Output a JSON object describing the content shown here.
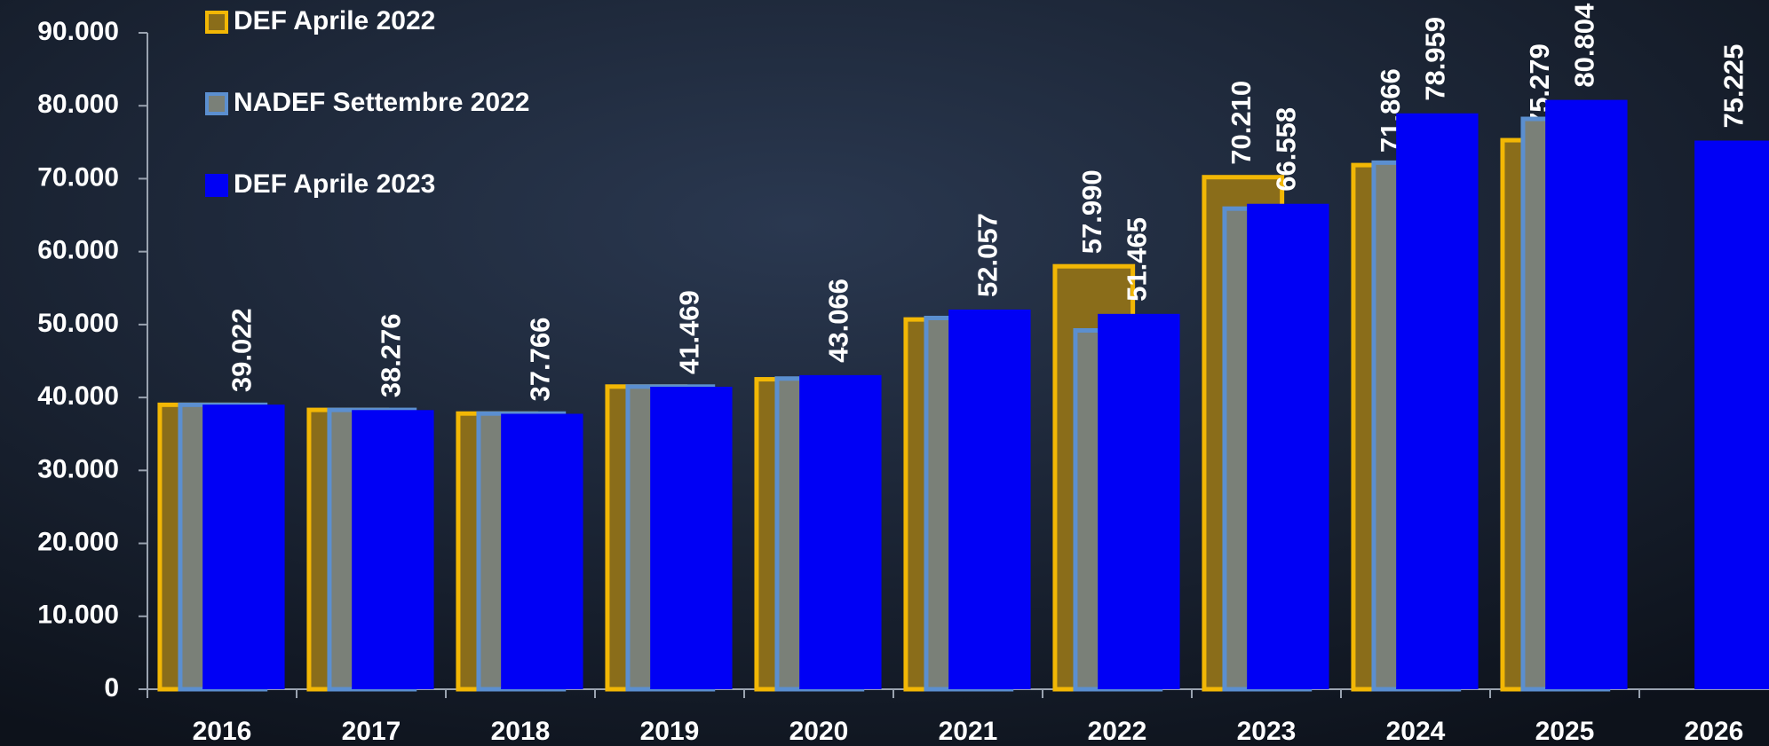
{
  "chart_data": {
    "type": "bar",
    "categories": [
      "2016",
      "2017",
      "2018",
      "2019",
      "2020",
      "2021",
      "2022",
      "2023",
      "2024",
      "2025",
      "2026"
    ],
    "series": [
      {
        "name": "DEF Aprile 2022",
        "color": "#8a6d1a",
        "edgecolor": "#f2b705",
        "label_color": "#f5f000",
        "values": [
          39000,
          38300,
          37800,
          41500,
          42500,
          50700,
          57990,
          70210,
          71866,
          75279,
          null
        ],
        "value_labels": [
          null,
          null,
          null,
          null,
          null,
          null,
          "57.990",
          "70.210",
          "71.866",
          "75.279",
          null
        ]
      },
      {
        "name": "NADEF Settembre 2022",
        "color": "#7a8078",
        "edgecolor": "#5b8fd0",
        "values": [
          39000,
          38300,
          37800,
          41500,
          42600,
          50900,
          49200,
          65900,
          72200,
          78200,
          null
        ]
      },
      {
        "name": "DEF Aprile 2023",
        "color": "#0000f5",
        "edgecolor": "#0000f5",
        "label_color": "#ffffff",
        "values": [
          39022,
          38276,
          37766,
          41469,
          43066,
          52057,
          51465,
          66558,
          78959,
          80804,
          75225
        ],
        "value_labels": [
          "39.022",
          "38.276",
          "37.766",
          "41.469",
          "43.066",
          "52.057",
          "51.465",
          "66.558",
          "78.959",
          "80.804",
          "75.225"
        ]
      }
    ],
    "ylim": [
      0,
      90000
    ],
    "yticks": [
      0,
      {
        "value": 10000,
        "label": "10.000"
      },
      {
        "value": 20000,
        "label": "20.000"
      },
      {
        "value": 30000,
        "label": "30.000"
      },
      {
        "value": 40000,
        "label": "40.000"
      },
      {
        "value": 50000,
        "label": "50.000"
      },
      {
        "value": 60000,
        "label": "60.000"
      },
      {
        "value": 70000,
        "label": "70.000"
      },
      {
        "value": 80000,
        "label": "80.000"
      },
      {
        "value": 90000,
        "label": "90.000"
      }
    ],
    "legend": "upper left"
  }
}
